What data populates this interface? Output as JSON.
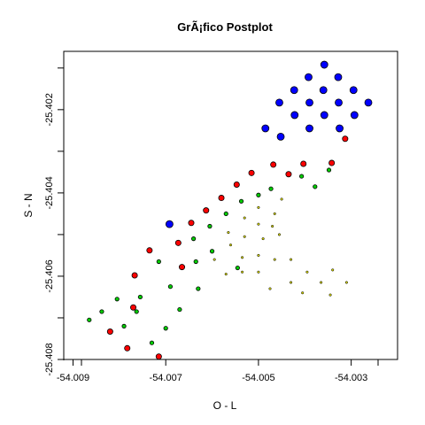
{
  "chart_data": {
    "type": "scatter",
    "title": "GrÃ¡fico Postplot",
    "xlabel": "O - L",
    "ylabel": "S - N",
    "xlim": [
      -54.0092,
      -54.002
    ],
    "ylim": [
      -25.408,
      -25.4006
    ],
    "x_ticks": [
      -54.009,
      -54.007,
      -54.005,
      -54.003
    ],
    "x_tick_labels": [
      "-54.009",
      "-54.007",
      "-54.005",
      "-54.003"
    ],
    "y_ticks": [
      -25.402,
      -25.404,
      -25.406,
      -25.408
    ],
    "y_tick_labels": [
      "-25.402",
      "-25.404",
      "-25.406",
      "-25.408"
    ],
    "grid": false,
    "legend": "none",
    "colors": {
      "blue": "#0000ff",
      "red": "#ff0000",
      "green": "#00cc00",
      "yellow": "#cccc00",
      "outline": "#000000"
    },
    "series": [
      {
        "color": "blue",
        "size": 4,
        "points": [
          [
            -54.00358,
            -25.40092
          ],
          [
            -54.00392,
            -25.40122
          ],
          [
            -54.00328,
            -25.40122
          ],
          [
            -54.00423,
            -25.40153
          ],
          [
            -54.0036,
            -25.40153
          ],
          [
            -54.00295,
            -25.40153
          ],
          [
            -54.00455,
            -25.40183
          ],
          [
            -54.0039,
            -25.40183
          ],
          [
            -54.00327,
            -25.40183
          ],
          [
            -54.00263,
            -25.40183
          ],
          [
            -54.00422,
            -25.40213
          ],
          [
            -54.00358,
            -25.40213
          ],
          [
            -54.00293,
            -25.40213
          ],
          [
            -54.00485,
            -25.40245
          ],
          [
            -54.0039,
            -25.40245
          ],
          [
            -54.00325,
            -25.40245
          ],
          [
            -54.00452,
            -25.40265
          ],
          [
            -54.00692,
            -25.40475
          ]
        ]
      },
      {
        "color": "red",
        "size": 3,
        "points": [
          [
            -54.00313,
            -25.4027
          ],
          [
            -54.00342,
            -25.40328
          ],
          [
            -54.00403,
            -25.4033
          ],
          [
            -54.00468,
            -25.40332
          ],
          [
            -54.00435,
            -25.40355
          ],
          [
            -54.00515,
            -25.40352
          ],
          [
            -54.00547,
            -25.4038
          ],
          [
            -54.0058,
            -25.40412
          ],
          [
            -54.00613,
            -25.40442
          ],
          [
            -54.00645,
            -25.40472
          ],
          [
            -54.00673,
            -25.4052
          ],
          [
            -54.00735,
            -25.40538
          ],
          [
            -54.00665,
            -25.40578
          ],
          [
            -54.00767,
            -25.40598
          ],
          [
            -54.0077,
            -25.40675
          ],
          [
            -54.0082,
            -25.40733
          ],
          [
            -54.00783,
            -25.40773
          ],
          [
            -54.00715,
            -25.40793
          ]
        ]
      },
      {
        "color": "green",
        "size": 2,
        "points": [
          [
            -54.00348,
            -25.40345
          ],
          [
            -54.00407,
            -25.4036
          ],
          [
            -54.00378,
            -25.40385
          ],
          [
            -54.00473,
            -25.4039
          ],
          [
            -54.00537,
            -25.4042
          ],
          [
            -54.005,
            -25.40405
          ],
          [
            -54.0057,
            -25.4045
          ],
          [
            -54.00605,
            -25.4048
          ],
          [
            -54.0064,
            -25.4051
          ],
          [
            -54.006,
            -25.4054
          ],
          [
            -54.00635,
            -25.40565
          ],
          [
            -54.00715,
            -25.40565
          ],
          [
            -54.0069,
            -25.40625
          ],
          [
            -54.0063,
            -25.4063
          ],
          [
            -54.00755,
            -25.4065
          ],
          [
            -54.00805,
            -25.40655
          ],
          [
            -54.00838,
            -25.40685
          ],
          [
            -54.00763,
            -25.40685
          ],
          [
            -54.00865,
            -25.40705
          ],
          [
            -54.0067,
            -25.4068
          ],
          [
            -54.007,
            -25.40725
          ],
          [
            -54.0079,
            -25.4072
          ],
          [
            -54.0073,
            -25.4076
          ],
          [
            -54.00545,
            -25.4058
          ]
        ]
      },
      {
        "color": "yellow",
        "size": 1,
        "points": [
          [
            -54.0045,
            -25.40415
          ],
          [
            -54.005,
            -25.40435
          ],
          [
            -54.00465,
            -25.4045
          ],
          [
            -54.0053,
            -25.4046
          ],
          [
            -54.00565,
            -25.40495
          ],
          [
            -54.005,
            -25.40475
          ],
          [
            -54.0047,
            -25.4048
          ],
          [
            -54.0053,
            -25.40505
          ],
          [
            -54.0056,
            -25.40525
          ],
          [
            -54.0049,
            -25.4051
          ],
          [
            -54.00455,
            -25.405
          ],
          [
            -54.00595,
            -25.4056
          ],
          [
            -54.0057,
            -25.40595
          ],
          [
            -54.00535,
            -25.40555
          ],
          [
            -54.005,
            -25.4055
          ],
          [
            -54.00535,
            -25.4059
          ],
          [
            -54.00465,
            -25.4056
          ],
          [
            -54.0043,
            -25.4056
          ],
          [
            -54.005,
            -25.4059
          ],
          [
            -54.00395,
            -25.4059
          ],
          [
            -54.0043,
            -25.40615
          ],
          [
            -54.00365,
            -25.40615
          ],
          [
            -54.0034,
            -25.40585
          ],
          [
            -54.0031,
            -25.40615
          ],
          [
            -54.00345,
            -25.40645
          ],
          [
            -54.00405,
            -25.4064
          ],
          [
            -54.00475,
            -25.4063
          ]
        ]
      }
    ]
  }
}
